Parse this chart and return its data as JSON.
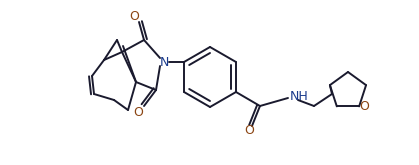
{
  "line_color": "#1a1a2e",
  "bg_color": "#ffffff",
  "label_color_N": "#1a3a8c",
  "label_color_O": "#8b4513",
  "line_width": 1.4,
  "figsize": [
    4.19,
    1.65
  ],
  "dpi": 100,
  "N_label": "N",
  "O_label": "O",
  "NH_label": "NH",
  "H_label": "H"
}
